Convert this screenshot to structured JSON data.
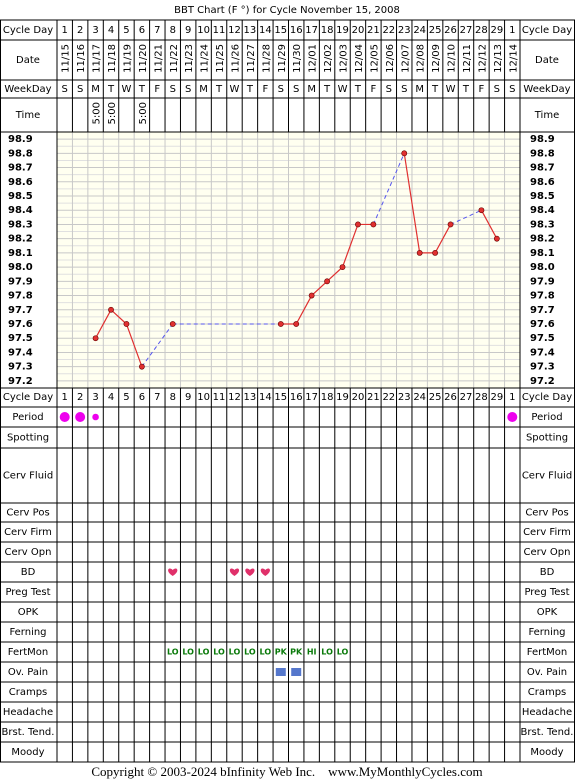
{
  "title": "BBT Chart (F °) for Cycle November 15, 2008",
  "header_rows": [
    "Cycle Day",
    "Date",
    "WeekDay",
    "Time"
  ],
  "cycle_days": [
    1,
    2,
    3,
    4,
    5,
    6,
    7,
    8,
    9,
    10,
    11,
    12,
    13,
    14,
    15,
    16,
    17,
    18,
    19,
    20,
    21,
    22,
    23,
    24,
    25,
    26,
    27,
    28,
    29,
    1
  ],
  "dates": [
    "11/15",
    "11/16",
    "11/17",
    "11/18",
    "11/19",
    "11/20",
    "11/21",
    "11/22",
    "11/23",
    "11/24",
    "11/25",
    "11/26",
    "11/27",
    "11/28",
    "11/29",
    "11/30",
    "12/01",
    "12/02",
    "12/03",
    "12/04",
    "12/05",
    "12/06",
    "12/07",
    "12/08",
    "12/09",
    "12/10",
    "12/11",
    "12/12",
    "12/13",
    "12/14"
  ],
  "weekdays": [
    "S",
    "S",
    "M",
    "T",
    "W",
    "T",
    "F",
    "S",
    "S",
    "M",
    "T",
    "W",
    "T",
    "F",
    "S",
    "S",
    "M",
    "T",
    "W",
    "T",
    "F",
    "S",
    "S",
    "M",
    "T",
    "W",
    "T",
    "F",
    "S",
    "S"
  ],
  "times": [
    null,
    null,
    "5:00",
    "5:00",
    null,
    "5:00",
    null,
    null,
    null,
    null,
    null,
    null,
    null,
    null,
    null,
    null,
    null,
    null,
    null,
    null,
    null,
    null,
    null,
    null,
    null,
    null,
    null,
    null,
    null,
    null
  ],
  "chart_data": {
    "type": "line",
    "ylim": [
      97.15,
      98.95
    ],
    "yticks": [
      98.9,
      98.8,
      98.7,
      98.6,
      98.5,
      98.4,
      98.3,
      98.2,
      98.1,
      {
        "value": 98,
        "label": "98.0"
      },
      97.9,
      97.8,
      97.7,
      97.6,
      97.5,
      97.4,
      97.3,
      97.2
    ],
    "grid": true,
    "series": [
      {
        "color": "#e03030",
        "gap_color": "#5555ee",
        "values": [
          null,
          null,
          97.5,
          97.7,
          97.6,
          97.3,
          null,
          97.6,
          null,
          null,
          null,
          null,
          null,
          null,
          97.6,
          97.6,
          97.8,
          97.9,
          98.0,
          98.3,
          98.3,
          null,
          98.8,
          98.1,
          98.1,
          98.3,
          null,
          98.4,
          98.2,
          null
        ]
      }
    ]
  },
  "symptom_rows": [
    "Period",
    "Spotting",
    "Cerv Fluid",
    "Cerv Pos",
    "Cerv Firm",
    "Cerv Opn",
    "BD",
    "Preg Test",
    "OPK",
    "Ferning",
    "FertMon",
    "Ov. Pain",
    "Cramps",
    "Headache",
    "Brst. Tend.",
    "Moody"
  ],
  "period": [
    2,
    2,
    1,
    null,
    null,
    null,
    null,
    null,
    null,
    null,
    null,
    null,
    null,
    null,
    null,
    null,
    null,
    null,
    null,
    null,
    null,
    null,
    null,
    null,
    null,
    null,
    null,
    null,
    null,
    2
  ],
  "bd": [
    null,
    null,
    null,
    null,
    null,
    null,
    null,
    1,
    null,
    null,
    null,
    1,
    1,
    1,
    null,
    null,
    null,
    null,
    null,
    null,
    null,
    null,
    null,
    null,
    null,
    null,
    null,
    null,
    null,
    null
  ],
  "fertmon": [
    null,
    null,
    null,
    null,
    null,
    null,
    null,
    "LO",
    "LO",
    "LO",
    "LO",
    "LO",
    "LO",
    "LO",
    "PK",
    "PK",
    "HI",
    "LO",
    "LO",
    null,
    null,
    null,
    null,
    null,
    null,
    null,
    null,
    null,
    null,
    null
  ],
  "ov_pain": [
    null,
    null,
    null,
    null,
    null,
    null,
    null,
    null,
    null,
    null,
    null,
    null,
    null,
    null,
    1,
    1,
    null,
    null,
    null,
    null,
    null,
    null,
    null,
    null,
    null,
    null,
    null,
    null,
    null,
    null
  ],
  "footer": "Copyright © 2003-2024 bInfinity Web Inc.    www.MyMonthlyCycles.com"
}
